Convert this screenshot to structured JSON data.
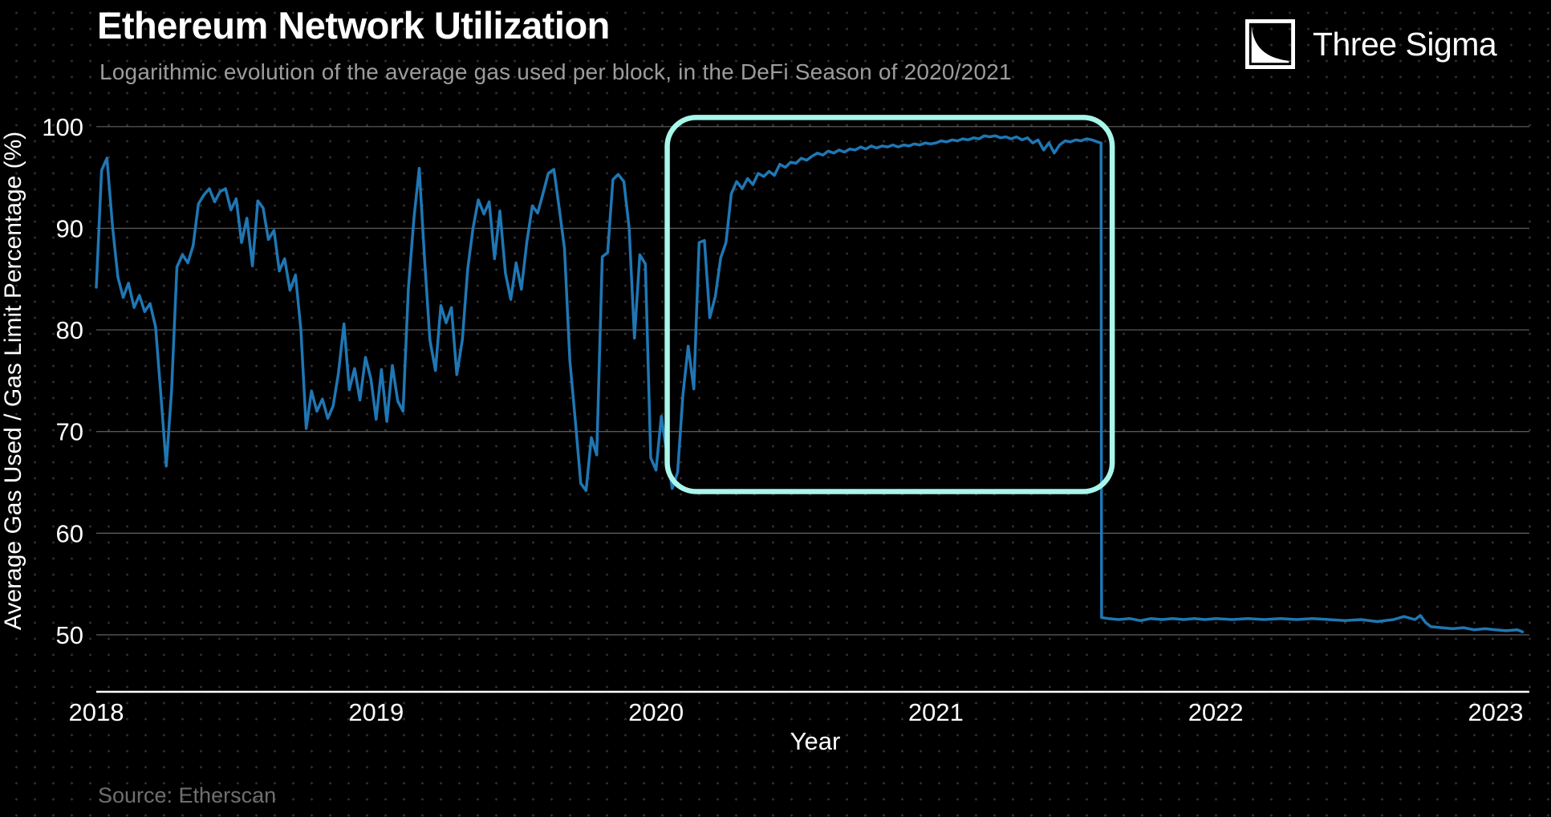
{
  "header": {
    "title": "Ethereum Network Utilization",
    "subtitle": "Logarithmic evolution of the average gas used per block, in the DeFi Season of 2020/2021"
  },
  "brand": {
    "name": "Three Sigma",
    "logo_icon": "three-sigma-logo"
  },
  "footer": {
    "source": "Source: Etherscan"
  },
  "colors": {
    "background": "#000000",
    "line": "#1f77b4",
    "highlight_box": "#a9f6ea",
    "grid": "#a3a3a3",
    "axis": "#ffffff",
    "tick_text": "#ffffff",
    "subtitle_text": "#9c9c9c",
    "source_text": "#6f6f6f",
    "dot_pattern": "#2f2f2f"
  },
  "chart_data": {
    "type": "line",
    "title": "Ethereum Network Utilization",
    "subtitle": "Logarithmic evolution of the average gas used per block, in the DeFi Season of 2020/2021",
    "xlabel": "Year",
    "ylabel": "Average Gas Used / Gas Limit Percentage (%)",
    "x_ticks": [
      2018,
      2019,
      2020,
      2021,
      2022,
      2023
    ],
    "y_ticks": [
      100,
      90,
      80,
      70,
      60,
      50
    ],
    "xlim": [
      2017.97,
      2023.15
    ],
    "ylim": [
      44.4,
      103.4
    ],
    "grid": "horizontal-only",
    "legend": "none",
    "annotation_box": {
      "label": "DeFi Season 2020/2021 highlight",
      "x_range": [
        2020.04,
        2021.63
      ],
      "y_range": [
        64.1,
        100.9
      ],
      "shape": "rounded-rect",
      "color": "#a9f6ea"
    },
    "series": [
      {
        "name": "Average gas used / gas limit (%)",
        "color": "#1f77b4",
        "points": [
          [
            2018.0,
            84.2
          ],
          [
            2018.019,
            95.7
          ],
          [
            2018.038,
            96.9
          ],
          [
            2018.058,
            90.2
          ],
          [
            2018.077,
            85.2
          ],
          [
            2018.096,
            83.2
          ],
          [
            2018.115,
            84.6
          ],
          [
            2018.135,
            82.2
          ],
          [
            2018.154,
            83.4
          ],
          [
            2018.173,
            81.8
          ],
          [
            2018.192,
            82.6
          ],
          [
            2018.212,
            80.3
          ],
          [
            2018.231,
            73.5
          ],
          [
            2018.25,
            66.6
          ],
          [
            2018.269,
            74.0
          ],
          [
            2018.288,
            86.2
          ],
          [
            2018.308,
            87.4
          ],
          [
            2018.327,
            86.6
          ],
          [
            2018.346,
            88.3
          ],
          [
            2018.365,
            92.4
          ],
          [
            2018.385,
            93.3
          ],
          [
            2018.404,
            93.9
          ],
          [
            2018.423,
            92.6
          ],
          [
            2018.442,
            93.6
          ],
          [
            2018.462,
            93.9
          ],
          [
            2018.481,
            91.8
          ],
          [
            2018.5,
            92.9
          ],
          [
            2018.519,
            88.6
          ],
          [
            2018.538,
            91.0
          ],
          [
            2018.558,
            86.3
          ],
          [
            2018.577,
            92.7
          ],
          [
            2018.596,
            92.0
          ],
          [
            2018.615,
            88.9
          ],
          [
            2018.635,
            89.8
          ],
          [
            2018.654,
            85.8
          ],
          [
            2018.673,
            87.0
          ],
          [
            2018.692,
            83.9
          ],
          [
            2018.712,
            85.4
          ],
          [
            2018.731,
            80.0
          ],
          [
            2018.75,
            70.3
          ],
          [
            2018.769,
            74.0
          ],
          [
            2018.788,
            72.0
          ],
          [
            2018.808,
            73.2
          ],
          [
            2018.827,
            71.3
          ],
          [
            2018.846,
            72.5
          ],
          [
            2018.865,
            75.7
          ],
          [
            2018.885,
            80.6
          ],
          [
            2018.904,
            74.1
          ],
          [
            2018.923,
            76.2
          ],
          [
            2018.942,
            73.1
          ],
          [
            2018.962,
            77.3
          ],
          [
            2018.981,
            75.2
          ],
          [
            2019.0,
            71.2
          ],
          [
            2019.019,
            76.1
          ],
          [
            2019.038,
            71.0
          ],
          [
            2019.058,
            76.5
          ],
          [
            2019.077,
            73.0
          ],
          [
            2019.096,
            72.0
          ],
          [
            2019.115,
            84.0
          ],
          [
            2019.135,
            91.0
          ],
          [
            2019.154,
            95.9
          ],
          [
            2019.173,
            87.0
          ],
          [
            2019.192,
            79.0
          ],
          [
            2019.212,
            76.0
          ],
          [
            2019.231,
            82.4
          ],
          [
            2019.25,
            80.7
          ],
          [
            2019.269,
            82.2
          ],
          [
            2019.288,
            75.6
          ],
          [
            2019.308,
            79.0
          ],
          [
            2019.327,
            86.0
          ],
          [
            2019.346,
            90.0
          ],
          [
            2019.365,
            92.8
          ],
          [
            2019.385,
            91.4
          ],
          [
            2019.404,
            92.6
          ],
          [
            2019.423,
            87.0
          ],
          [
            2019.442,
            91.7
          ],
          [
            2019.462,
            85.6
          ],
          [
            2019.481,
            83.0
          ],
          [
            2019.5,
            86.6
          ],
          [
            2019.519,
            84.0
          ],
          [
            2019.538,
            88.6
          ],
          [
            2019.558,
            92.2
          ],
          [
            2019.577,
            91.5
          ],
          [
            2019.596,
            93.4
          ],
          [
            2019.615,
            95.4
          ],
          [
            2019.635,
            95.8
          ],
          [
            2019.654,
            92.0
          ],
          [
            2019.673,
            88.0
          ],
          [
            2019.692,
            77.0
          ],
          [
            2019.712,
            71.0
          ],
          [
            2019.731,
            64.9
          ],
          [
            2019.75,
            64.2
          ],
          [
            2019.769,
            69.4
          ],
          [
            2019.788,
            67.7
          ],
          [
            2019.808,
            87.2
          ],
          [
            2019.827,
            87.6
          ],
          [
            2019.846,
            94.8
          ],
          [
            2019.865,
            95.3
          ],
          [
            2019.885,
            94.6
          ],
          [
            2019.904,
            90.0
          ],
          [
            2019.923,
            79.2
          ],
          [
            2019.942,
            87.4
          ],
          [
            2019.962,
            86.5
          ],
          [
            2019.981,
            67.4
          ],
          [
            2020.0,
            66.2
          ],
          [
            2020.019,
            71.5
          ],
          [
            2020.038,
            67.9
          ],
          [
            2020.058,
            64.4
          ],
          [
            2020.077,
            66.0
          ],
          [
            2020.096,
            73.6
          ],
          [
            2020.115,
            78.4
          ],
          [
            2020.135,
            74.2
          ],
          [
            2020.154,
            88.6
          ],
          [
            2020.173,
            88.8
          ],
          [
            2020.192,
            81.2
          ],
          [
            2020.212,
            83.3
          ],
          [
            2020.231,
            87.1
          ],
          [
            2020.25,
            88.6
          ],
          [
            2020.269,
            93.4
          ],
          [
            2020.288,
            94.6
          ],
          [
            2020.308,
            93.9
          ],
          [
            2020.327,
            94.9
          ],
          [
            2020.346,
            94.3
          ],
          [
            2020.365,
            95.4
          ],
          [
            2020.385,
            95.1
          ],
          [
            2020.404,
            95.6
          ],
          [
            2020.423,
            95.2
          ],
          [
            2020.442,
            96.3
          ],
          [
            2020.462,
            96.0
          ],
          [
            2020.481,
            96.5
          ],
          [
            2020.5,
            96.4
          ],
          [
            2020.519,
            96.9
          ],
          [
            2020.538,
            96.7
          ],
          [
            2020.558,
            97.1
          ],
          [
            2020.577,
            97.4
          ],
          [
            2020.596,
            97.2
          ],
          [
            2020.615,
            97.6
          ],
          [
            2020.635,
            97.4
          ],
          [
            2020.654,
            97.7
          ],
          [
            2020.673,
            97.5
          ],
          [
            2020.692,
            97.8
          ],
          [
            2020.712,
            97.7
          ],
          [
            2020.731,
            98.0
          ],
          [
            2020.75,
            97.8
          ],
          [
            2020.769,
            98.1
          ],
          [
            2020.788,
            97.9
          ],
          [
            2020.808,
            98.1
          ],
          [
            2020.827,
            98.0
          ],
          [
            2020.846,
            98.2
          ],
          [
            2020.865,
            98.0
          ],
          [
            2020.885,
            98.2
          ],
          [
            2020.904,
            98.1
          ],
          [
            2020.923,
            98.3
          ],
          [
            2020.942,
            98.2
          ],
          [
            2020.962,
            98.4
          ],
          [
            2020.981,
            98.3
          ],
          [
            2021.0,
            98.4
          ],
          [
            2021.019,
            98.6
          ],
          [
            2021.038,
            98.5
          ],
          [
            2021.058,
            98.7
          ],
          [
            2021.077,
            98.6
          ],
          [
            2021.096,
            98.8
          ],
          [
            2021.115,
            98.7
          ],
          [
            2021.135,
            98.9
          ],
          [
            2021.154,
            98.8
          ],
          [
            2021.173,
            99.1
          ],
          [
            2021.192,
            99.0
          ],
          [
            2021.212,
            99.1
          ],
          [
            2021.231,
            98.9
          ],
          [
            2021.25,
            99.0
          ],
          [
            2021.269,
            98.8
          ],
          [
            2021.288,
            99.0
          ],
          [
            2021.308,
            98.7
          ],
          [
            2021.327,
            98.9
          ],
          [
            2021.346,
            98.4
          ],
          [
            2021.365,
            98.7
          ],
          [
            2021.385,
            97.7
          ],
          [
            2021.404,
            98.4
          ],
          [
            2021.423,
            97.4
          ],
          [
            2021.442,
            98.2
          ],
          [
            2021.462,
            98.6
          ],
          [
            2021.481,
            98.5
          ],
          [
            2021.5,
            98.7
          ],
          [
            2021.519,
            98.6
          ],
          [
            2021.538,
            98.8
          ],
          [
            2021.558,
            98.7
          ],
          [
            2021.577,
            98.5
          ],
          [
            2021.59,
            98.4
          ],
          [
            2021.592,
            51.7
          ],
          [
            2021.615,
            51.6
          ],
          [
            2021.654,
            51.5
          ],
          [
            2021.692,
            51.6
          ],
          [
            2021.731,
            51.4
          ],
          [
            2021.769,
            51.6
          ],
          [
            2021.808,
            51.5
          ],
          [
            2021.846,
            51.6
          ],
          [
            2021.885,
            51.5
          ],
          [
            2021.923,
            51.6
          ],
          [
            2021.962,
            51.5
          ],
          [
            2022.0,
            51.6
          ],
          [
            2022.058,
            51.5
          ],
          [
            2022.115,
            51.6
          ],
          [
            2022.173,
            51.5
          ],
          [
            2022.231,
            51.6
          ],
          [
            2022.288,
            51.5
          ],
          [
            2022.346,
            51.6
          ],
          [
            2022.404,
            51.5
          ],
          [
            2022.462,
            51.4
          ],
          [
            2022.519,
            51.5
          ],
          [
            2022.577,
            51.3
          ],
          [
            2022.635,
            51.5
          ],
          [
            2022.673,
            51.8
          ],
          [
            2022.712,
            51.5
          ],
          [
            2022.731,
            51.9
          ],
          [
            2022.75,
            51.2
          ],
          [
            2022.769,
            50.8
          ],
          [
            2022.808,
            50.7
          ],
          [
            2022.846,
            50.6
          ],
          [
            2022.885,
            50.7
          ],
          [
            2022.923,
            50.5
          ],
          [
            2022.962,
            50.6
          ],
          [
            2023.0,
            50.5
          ],
          [
            2023.038,
            50.4
          ],
          [
            2023.077,
            50.5
          ],
          [
            2023.096,
            50.3
          ]
        ]
      }
    ]
  }
}
